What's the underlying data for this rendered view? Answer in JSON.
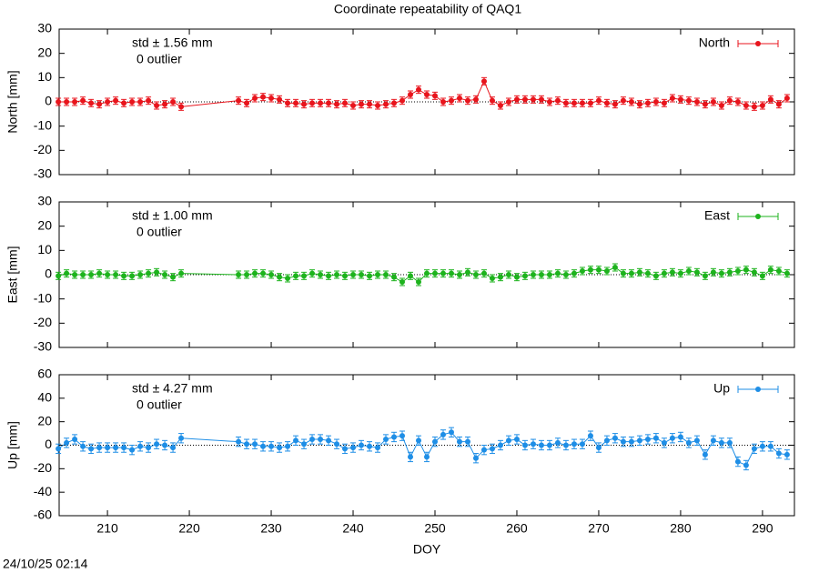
{
  "timestamp": "24/10/25 02:14",
  "chart_data": [
    {
      "type": "line",
      "title": "Coordinate repeatability of QAQ1",
      "ylabel": "North [mm]",
      "annotations": [
        "std ± 1.56 mm",
        "0 outlier"
      ],
      "xlim": [
        204.1,
        293.9
      ],
      "xticks": [
        210,
        220,
        230,
        240,
        250,
        260,
        270,
        280,
        290
      ],
      "ylim": [
        -30,
        30
      ],
      "yticks": [
        -30,
        -20,
        -10,
        0,
        10,
        20,
        30
      ],
      "refline": 0,
      "x": [
        204,
        205,
        206,
        207,
        208,
        209,
        210,
        211,
        212,
        213,
        214,
        215,
        216,
        217,
        218,
        219,
        226,
        227,
        228,
        229,
        230,
        231,
        232,
        233,
        234,
        235,
        236,
        237,
        238,
        239,
        240,
        241,
        242,
        243,
        244,
        245,
        246,
        247,
        248,
        249,
        250,
        251,
        252,
        253,
        254,
        255,
        256,
        257,
        258,
        259,
        260,
        261,
        262,
        263,
        264,
        265,
        266,
        267,
        268,
        269,
        270,
        271,
        272,
        273,
        274,
        275,
        276,
        277,
        278,
        279,
        280,
        281,
        282,
        283,
        284,
        285,
        286,
        287,
        288,
        289,
        290,
        291,
        292,
        293
      ],
      "series": [
        {
          "name": "North",
          "color": "#e8141c",
          "error": 1.5,
          "values": [
            0,
            0,
            0,
            0.5,
            -0.5,
            -1,
            0,
            0.5,
            -0.5,
            0,
            0,
            0.5,
            -1.5,
            -1,
            0,
            -2,
            0.5,
            -0.5,
            1.5,
            2,
            1.5,
            1,
            -0.5,
            -0.5,
            -1,
            -0.5,
            -0.5,
            -0.5,
            -1,
            -0.5,
            -1.5,
            -1,
            -1,
            -1.5,
            -1,
            -0.5,
            0.5,
            3,
            5,
            3,
            2.5,
            0,
            0.5,
            1.5,
            0.5,
            1,
            8.5,
            0.5,
            -1.5,
            0,
            1,
            1,
            1,
            1,
            0,
            0.5,
            -0.5,
            -0.5,
            -0.5,
            -0.5,
            0.5,
            -0.5,
            -1,
            0.5,
            0,
            -1,
            -0.5,
            0,
            -0.5,
            1.5,
            1,
            0.5,
            0,
            -1,
            0,
            -1.5,
            0.5,
            0,
            -1.5,
            -2,
            -1.5,
            1,
            -1,
            1.5
          ]
        }
      ]
    },
    {
      "type": "line",
      "ylabel": "East [mm]",
      "annotations": [
        "std ± 1.00 mm",
        "0 outlier"
      ],
      "xlim": [
        204.1,
        293.9
      ],
      "xticks": [
        210,
        220,
        230,
        240,
        250,
        260,
        270,
        280,
        290
      ],
      "ylim": [
        -30,
        30
      ],
      "yticks": [
        -30,
        -20,
        -10,
        0,
        10,
        20,
        30
      ],
      "refline": 0,
      "x": [
        204,
        205,
        206,
        207,
        208,
        209,
        210,
        211,
        212,
        213,
        214,
        215,
        216,
        217,
        218,
        219,
        226,
        227,
        228,
        229,
        230,
        231,
        232,
        233,
        234,
        235,
        236,
        237,
        238,
        239,
        240,
        241,
        242,
        243,
        244,
        245,
        246,
        247,
        248,
        249,
        250,
        251,
        252,
        253,
        254,
        255,
        256,
        257,
        258,
        259,
        260,
        261,
        262,
        263,
        264,
        265,
        266,
        267,
        268,
        269,
        270,
        271,
        272,
        273,
        274,
        275,
        276,
        277,
        278,
        279,
        280,
        281,
        282,
        283,
        284,
        285,
        286,
        287,
        288,
        289,
        290,
        291,
        292,
        293
      ],
      "series": [
        {
          "name": "East",
          "color": "#1db31d",
          "error": 1.5,
          "values": [
            -0.5,
            0.5,
            0,
            0,
            0,
            0.5,
            0,
            0,
            -0.5,
            -0.5,
            0,
            0.5,
            1,
            0,
            -1,
            0.5,
            0,
            0,
            0.5,
            0.5,
            0,
            -1,
            -1.5,
            -0.5,
            -0.5,
            0.5,
            0,
            -0.5,
            0,
            -0.5,
            0,
            0,
            -0.5,
            0,
            0,
            -1,
            -3,
            -0.5,
            -3,
            0.5,
            0.5,
            0.5,
            0.5,
            0,
            1,
            0,
            0.5,
            -1.5,
            -1,
            0,
            -1,
            -0.5,
            0,
            0,
            0,
            0.5,
            0,
            0.5,
            1.5,
            2,
            2,
            1.5,
            3,
            0.5,
            0.5,
            1,
            0.5,
            -0.5,
            0.5,
            1,
            0.5,
            1.5,
            1,
            -0.5,
            1,
            0.5,
            1,
            1.5,
            2,
            1,
            -0.5,
            2,
            1.5,
            0.5
          ]
        }
      ]
    },
    {
      "type": "line",
      "ylabel": "Up [mm]",
      "xlabel": "DOY",
      "annotations": [
        "std ± 4.27 mm",
        "0 outlier"
      ],
      "xlim": [
        204.1,
        293.9
      ],
      "xticks": [
        210,
        220,
        230,
        240,
        250,
        260,
        270,
        280,
        290
      ],
      "ylim": [
        -60,
        60
      ],
      "yticks": [
        -60,
        -40,
        -20,
        0,
        20,
        40,
        60
      ],
      "refline": 0,
      "x": [
        204,
        205,
        206,
        207,
        208,
        209,
        210,
        211,
        212,
        213,
        214,
        215,
        216,
        217,
        218,
        219,
        226,
        227,
        228,
        229,
        230,
        231,
        232,
        233,
        234,
        235,
        236,
        237,
        238,
        239,
        240,
        241,
        242,
        243,
        244,
        245,
        246,
        247,
        248,
        249,
        250,
        251,
        252,
        253,
        254,
        255,
        256,
        257,
        258,
        259,
        260,
        261,
        262,
        263,
        264,
        265,
        266,
        267,
        268,
        269,
        270,
        271,
        272,
        273,
        274,
        275,
        276,
        277,
        278,
        279,
        280,
        281,
        282,
        283,
        284,
        285,
        286,
        287,
        288,
        289,
        290,
        291,
        292,
        293
      ],
      "series": [
        {
          "name": "Up",
          "color": "#1e8ee6",
          "error": 4,
          "values": [
            -3,
            2,
            5,
            -1,
            -3,
            -2,
            -2,
            -2,
            -2,
            -4,
            -1,
            -2,
            1,
            0,
            -2,
            6,
            3,
            1,
            1,
            -1,
            -1,
            -2,
            -1,
            4,
            1,
            5,
            5,
            4,
            1,
            -3,
            -2,
            0,
            -1,
            -2,
            5,
            7,
            8,
            -10,
            4,
            -10,
            3,
            9,
            11,
            3,
            3,
            -11,
            -4,
            -3,
            0,
            4,
            5,
            0,
            1,
            0,
            0,
            2,
            0,
            1,
            1,
            8,
            -2,
            4,
            6,
            3,
            3,
            4,
            5,
            6,
            2,
            6,
            7,
            2,
            4,
            -8,
            4,
            2,
            2,
            -14,
            -17,
            -3,
            -1,
            -1,
            -7,
            -8
          ]
        }
      ]
    }
  ]
}
